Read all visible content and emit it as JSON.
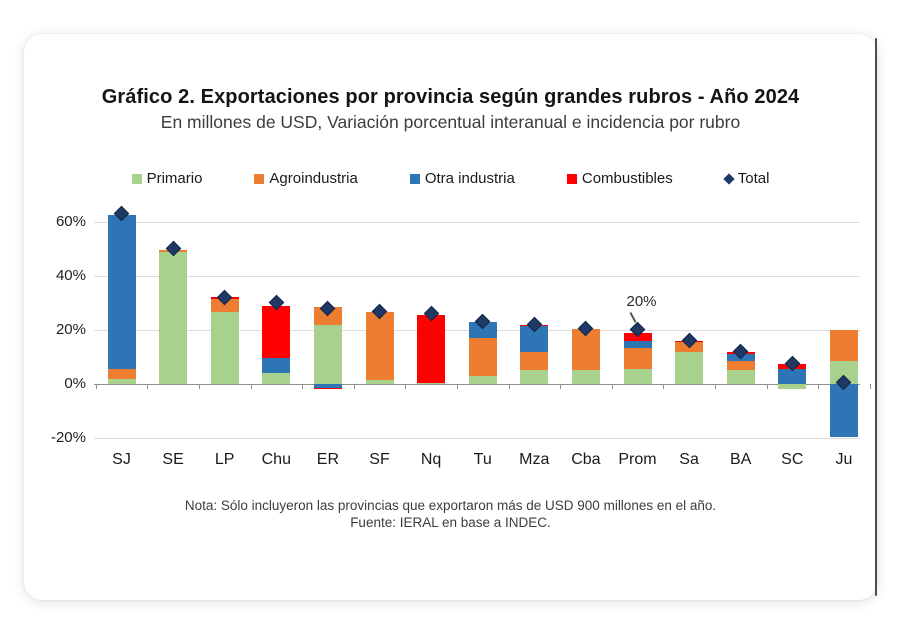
{
  "title": "Gráfico 2. Exportaciones por provincia según grandes rubros - Año 2024",
  "subtitle": "En millones de USD, Variación porcentual interanual e incidencia por rubro",
  "notes": [
    "Nota: Sólo incluyeron las provincias que exportaron más de USD 900 millones en el año.",
    "Fuente: IERAL en base a INDEC."
  ],
  "chart_data": {
    "type": "bar",
    "stacked": true,
    "title": "Gráfico 2. Exportaciones por provincia según grandes rubros - Año 2024",
    "subtitle": "En millones de USD, Variación porcentual interanual e incidencia por rubro",
    "xlabel": "",
    "ylabel": "Variación porcentual interanual (%)",
    "categories": [
      "SJ",
      "SE",
      "LP",
      "Chu",
      "ER",
      "SF",
      "Nq",
      "Tu",
      "Mza",
      "Cba",
      "Prom",
      "Sa",
      "BA",
      "SC",
      "Ju"
    ],
    "series": [
      {
        "name": "Primario",
        "color": "#A9D18E",
        "values": [
          2,
          49,
          26.5,
          4,
          22,
          1.5,
          0.5,
          3,
          5,
          5,
          5.5,
          12,
          5,
          -2,
          8.5
        ]
      },
      {
        "name": "Agroindustria",
        "color": "#ED7D31",
        "values": [
          3.5,
          0.5,
          5,
          0,
          6.5,
          25,
          0,
          14,
          7,
          15.5,
          8,
          3.5,
          3.5,
          0,
          11.5
        ]
      },
      {
        "name": "Otra industria",
        "color": "#2E75B6",
        "values": [
          57,
          0,
          0,
          5.5,
          -1.5,
          0,
          0,
          6,
          9.5,
          0,
          2.5,
          0,
          2.5,
          5.5,
          -19.5
        ]
      },
      {
        "name": "Combustibles",
        "color": "#FF0000",
        "values": [
          0,
          0,
          0.7,
          19.5,
          -0.5,
          0,
          25,
          0,
          0.5,
          0,
          3,
          0.5,
          0.7,
          2,
          0
        ]
      }
    ],
    "totals": {
      "name": "Total",
      "marker": "diamond",
      "color": "#1F3864",
      "values": [
        63,
        50,
        32,
        30,
        28,
        27,
        26,
        23,
        22,
        20.5,
        20,
        16,
        12,
        7.5,
        0.5
      ]
    },
    "annotation": {
      "text": "20%",
      "category": "Prom",
      "value": 20
    },
    "y_axis": {
      "tick_labels": [
        "60%",
        "40%",
        "20%",
        "0%",
        "-20%"
      ],
      "tick_values": [
        60,
        40,
        20,
        0,
        -20
      ],
      "min": -23,
      "max": 68.5
    },
    "grid": true,
    "legend_position": "top"
  }
}
